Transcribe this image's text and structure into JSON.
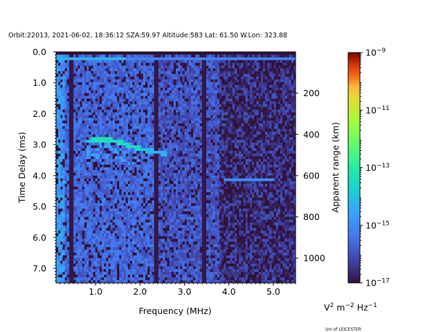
{
  "chart_data": {
    "type": "heatmap",
    "title": "Orbit:22013, 2021-06-02, 18:36:12 SZA:59.97 Altitude:583 Lat: 61.50 W.Lon: 323.88",
    "xlabel": "Frequency (MHz)",
    "ylabel": "Time Delay (ms)",
    "y2label": "Apparent range (km)",
    "xlim": [
      0.11,
      5.5
    ],
    "ylim": [
      7.47,
      0.0
    ],
    "y2lim": [
      1120,
      0
    ],
    "x_ticks": [
      "1.0",
      "2.0",
      "3.0",
      "4.0",
      "5.0"
    ],
    "x_tick_values": [
      1,
      2,
      3,
      4,
      5
    ],
    "y_ticks": [
      "0.0",
      "1.0",
      "2.0",
      "3.0",
      "4.0",
      "5.0",
      "6.0",
      "7.0"
    ],
    "y_tick_values": [
      0,
      1,
      2,
      3,
      4,
      5,
      6,
      7
    ],
    "y2_ticks": [
      "200",
      "400",
      "600",
      "800",
      "1000"
    ],
    "y2_tick_values": [
      200,
      400,
      600,
      800,
      1000
    ],
    "colorbar": {
      "scale": "log",
      "range_log10": [
        -17,
        -9
      ],
      "tick_labels": [
        {
          "base": "10",
          "exp": "−9",
          "log": -9
        },
        {
          "base": "10",
          "exp": "−11",
          "log": -11
        },
        {
          "base": "10",
          "exp": "−13",
          "log": -13
        },
        {
          "base": "10",
          "exp": "−15",
          "log": -15
        },
        {
          "base": "10",
          "exp": "−17",
          "log": -17
        }
      ],
      "units": {
        "v": "V",
        "v_exp": "2",
        "m": " m",
        "m_exp": "−2",
        "hz": " Hz",
        "hz_exp": "−1"
      },
      "colormap": "turbo"
    },
    "features": {
      "echo_trace": [
        [
          0.8,
          2.9,
          -13.8
        ],
        [
          1.0,
          2.85,
          -13.4
        ],
        [
          1.3,
          2.85,
          -13.3
        ],
        [
          1.6,
          2.95,
          -13.4
        ],
        [
          1.9,
          3.1,
          -13.5
        ],
        [
          2.2,
          3.2,
          -14.2
        ],
        [
          2.6,
          3.3,
          -14.4
        ]
      ],
      "dark_columns_mhz": [
        0.45,
        2.37,
        3.45
      ],
      "bright_row_ms": 0.2,
      "horizontal_line": {
        "f_from": 3.9,
        "f_to": 5.0,
        "delay_ms": 4.1,
        "log": -15.0
      },
      "background_log_low_freq": -15.6,
      "background_log_high_freq": -16.4
    }
  },
  "credit": "Uni of LEICESTER"
}
